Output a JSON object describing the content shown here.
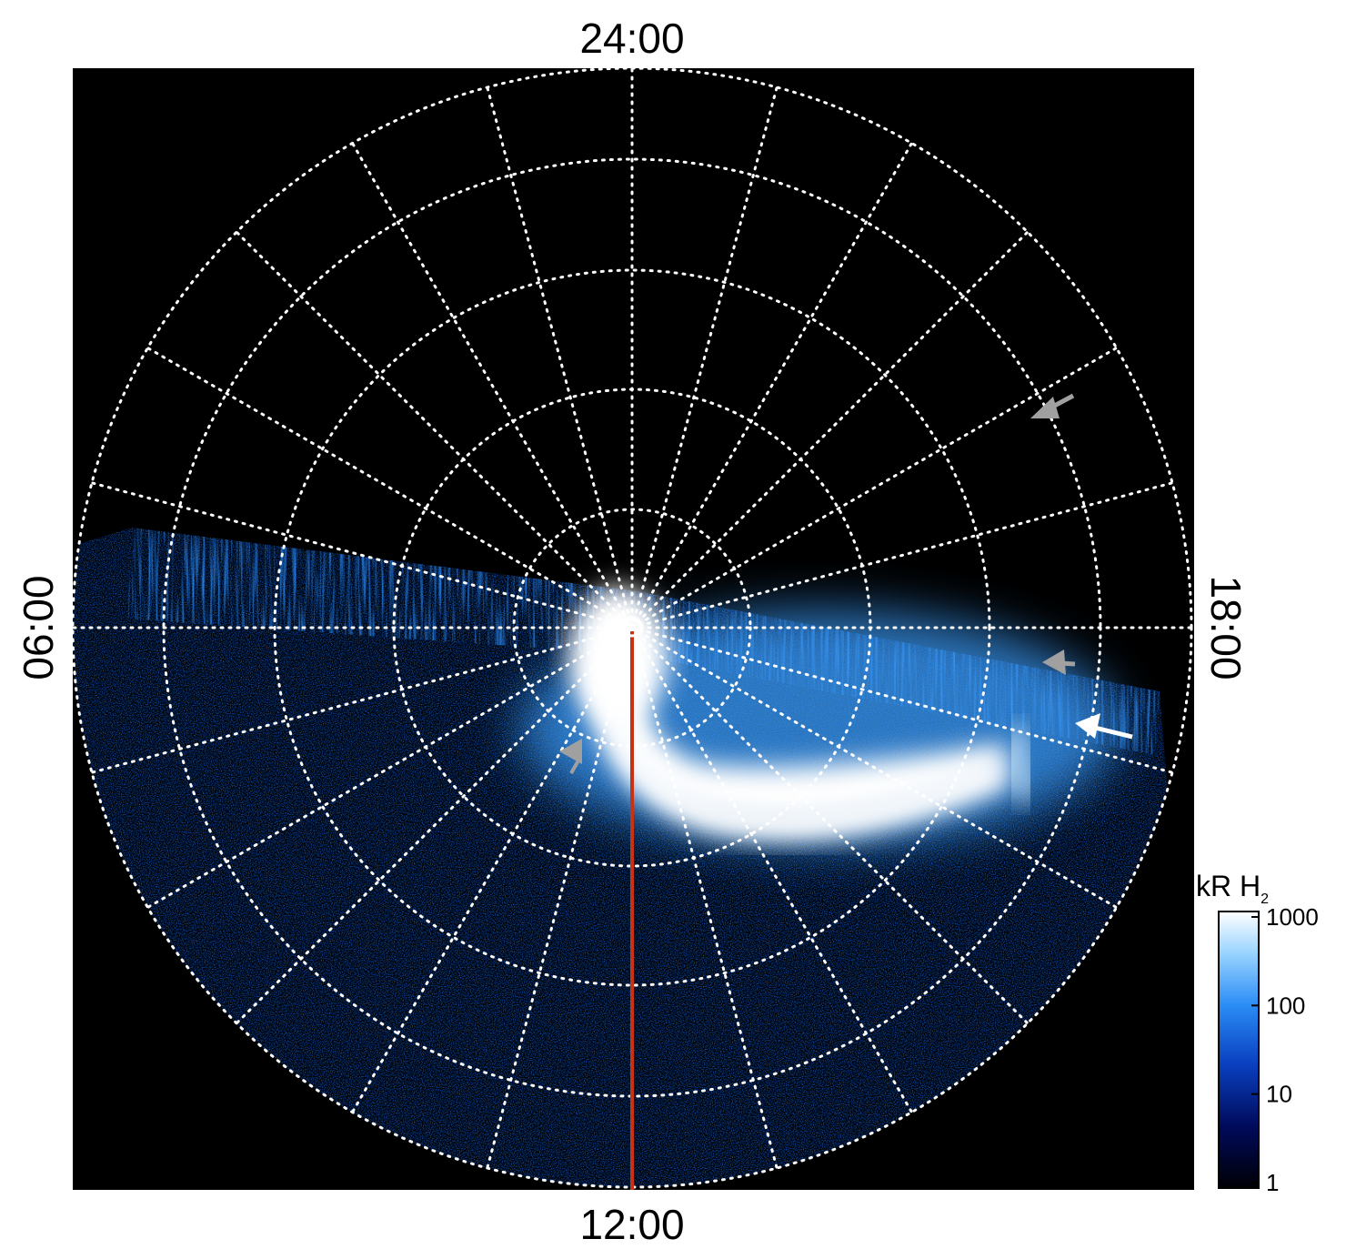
{
  "figure": {
    "local_time_labels": {
      "top": "24:00",
      "bottom": "12:00",
      "left": "06:00",
      "right": "18:00"
    },
    "colorbar": {
      "unit_main": "kR H",
      "unit_sub": "2",
      "ticks": [
        "1000",
        "100",
        "10",
        "1"
      ],
      "scale": "log",
      "range": [
        1,
        1000
      ],
      "colors": [
        "#000005",
        "#000a5a",
        "#0a40c0",
        "#2a8cf5",
        "#9ad4ff",
        "#ffffff"
      ]
    },
    "grid": {
      "style": "dotted",
      "color": "#ffffff",
      "meridian_step_hours": 1
    },
    "annotations": {
      "meridian_line_color": "#c83214",
      "arrow_colors": [
        "#a0a0a0",
        "#a0a0a0",
        "#a0a0a0",
        "#ffffff"
      ]
    }
  }
}
